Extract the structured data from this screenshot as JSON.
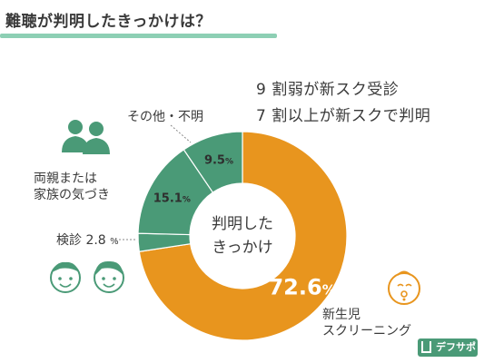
{
  "title": "難聴が判明したきっかけは？",
  "summary": {
    "line1": "9 割弱が新スク受診",
    "line2": "7 割以上が新スクで判明"
  },
  "center_label": {
    "line1": "判明した",
    "line2": "きっかけ"
  },
  "labels": {
    "other": "その他・不明",
    "family_line1": "両親または",
    "family_line2": "家族の気づき",
    "checkup": "検診",
    "newborn_line1": "新生児",
    "newborn_line2": "スクリーニング"
  },
  "logo": "デフサポ",
  "colors": {
    "orange": "#e8951e",
    "green": "#4a9a77",
    "underline": "#8dcfb4"
  },
  "chart_data": {
    "type": "pie",
    "donut": true,
    "start_angle_deg": 0,
    "slices": [
      {
        "label": "新生児 スクリーニング",
        "value": 72.6,
        "display": "72.6",
        "unit": "%",
        "color": "#e8951e"
      },
      {
        "label": "検診",
        "value": 2.8,
        "display": "2.8",
        "unit": "%",
        "color": "#4a9a77"
      },
      {
        "label": "両親または家族の気づき",
        "value": 15.1,
        "display": "15.1",
        "unit": "%",
        "color": "#4a9a77"
      },
      {
        "label": "その他・不明",
        "value": 9.5,
        "display": "9.5",
        "unit": "%",
        "color": "#4a9a77"
      }
    ]
  }
}
